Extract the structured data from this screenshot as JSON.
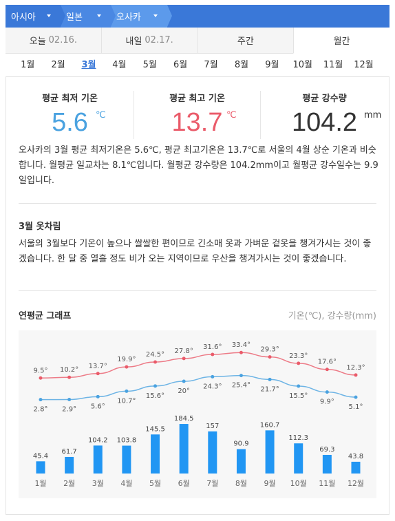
{
  "breadcrumb": {
    "items": [
      {
        "label": "아시아"
      },
      {
        "label": "일본"
      },
      {
        "label": "오사카"
      }
    ]
  },
  "tabs": [
    {
      "label": "오늘",
      "sub": "02.16."
    },
    {
      "label": "내일",
      "sub": "02.17."
    },
    {
      "label": "주간",
      "sub": ""
    },
    {
      "label": "월간",
      "sub": ""
    }
  ],
  "months": [
    "1월",
    "2월",
    "3월",
    "4월",
    "5월",
    "6월",
    "7월",
    "8월",
    "9월",
    "10월",
    "11월",
    "12월"
  ],
  "stats": {
    "min_label": "평균 최저 기온",
    "min_value": "5.6",
    "min_unit": "℃",
    "max_label": "평균 최고 기온",
    "max_value": "13.7",
    "max_unit": "℃",
    "rain_label": "평균 강수량",
    "rain_value": "104.2",
    "rain_unit": "mm"
  },
  "description": "오사카의 3월 평균 최저기온은 5.6℃, 평균 최고기온은 13.7℃로 서울의 4월 상순 기온과 비슷합니다. 월평균 일교차는 8.1℃입니다. 월평균 강수량은 104.2mm이고 월평균 강수일수는 9.9일입니다.",
  "clothing": {
    "title": "3월 옷차림",
    "text": "서울의 3월보다 기온이 높으나 쌀쌀한 편이므로 긴소매 옷과 가벼운 겉옷을 챙겨가시는 것이 좋겠습니다. 한 달 중 열흘 정도 비가 오는 지역이므로 우산을 챙겨가시는 것이 좋겠습니다."
  },
  "graph": {
    "title": "연평균 그래프",
    "unit_label": "기온(℃), 강수량(mm)"
  },
  "colors": {
    "accent": "#3a78d8",
    "max_line": "#ea5b6a",
    "min_line": "#4aa2e0",
    "bar": "#2196f3"
  },
  "chart_data": {
    "type": "bar",
    "categories": [
      "1월",
      "2월",
      "3월",
      "4월",
      "5월",
      "6월",
      "7월",
      "8월",
      "9월",
      "10월",
      "11월",
      "12월"
    ],
    "series": [
      {
        "values": [
          9.5,
          10.2,
          13.7,
          19.9,
          24.5,
          27.8,
          31.6,
          33.4,
          29.3,
          23.3,
          17.6,
          12.3
        ],
        "type": "line"
      },
      {
        "values": [
          2.8,
          2.9,
          5.6,
          10.7,
          15.6,
          20,
          24.3,
          25.4,
          21.7,
          15.5,
          9.9,
          5.1
        ],
        "type": "line"
      },
      {
        "values": [
          45.4,
          61.7,
          104.2,
          103.8,
          145.5,
          184.5,
          157,
          90.9,
          160.7,
          112.3,
          69.3,
          43.8
        ],
        "type": "bar"
      }
    ],
    "title": "연평균 그래프"
  }
}
